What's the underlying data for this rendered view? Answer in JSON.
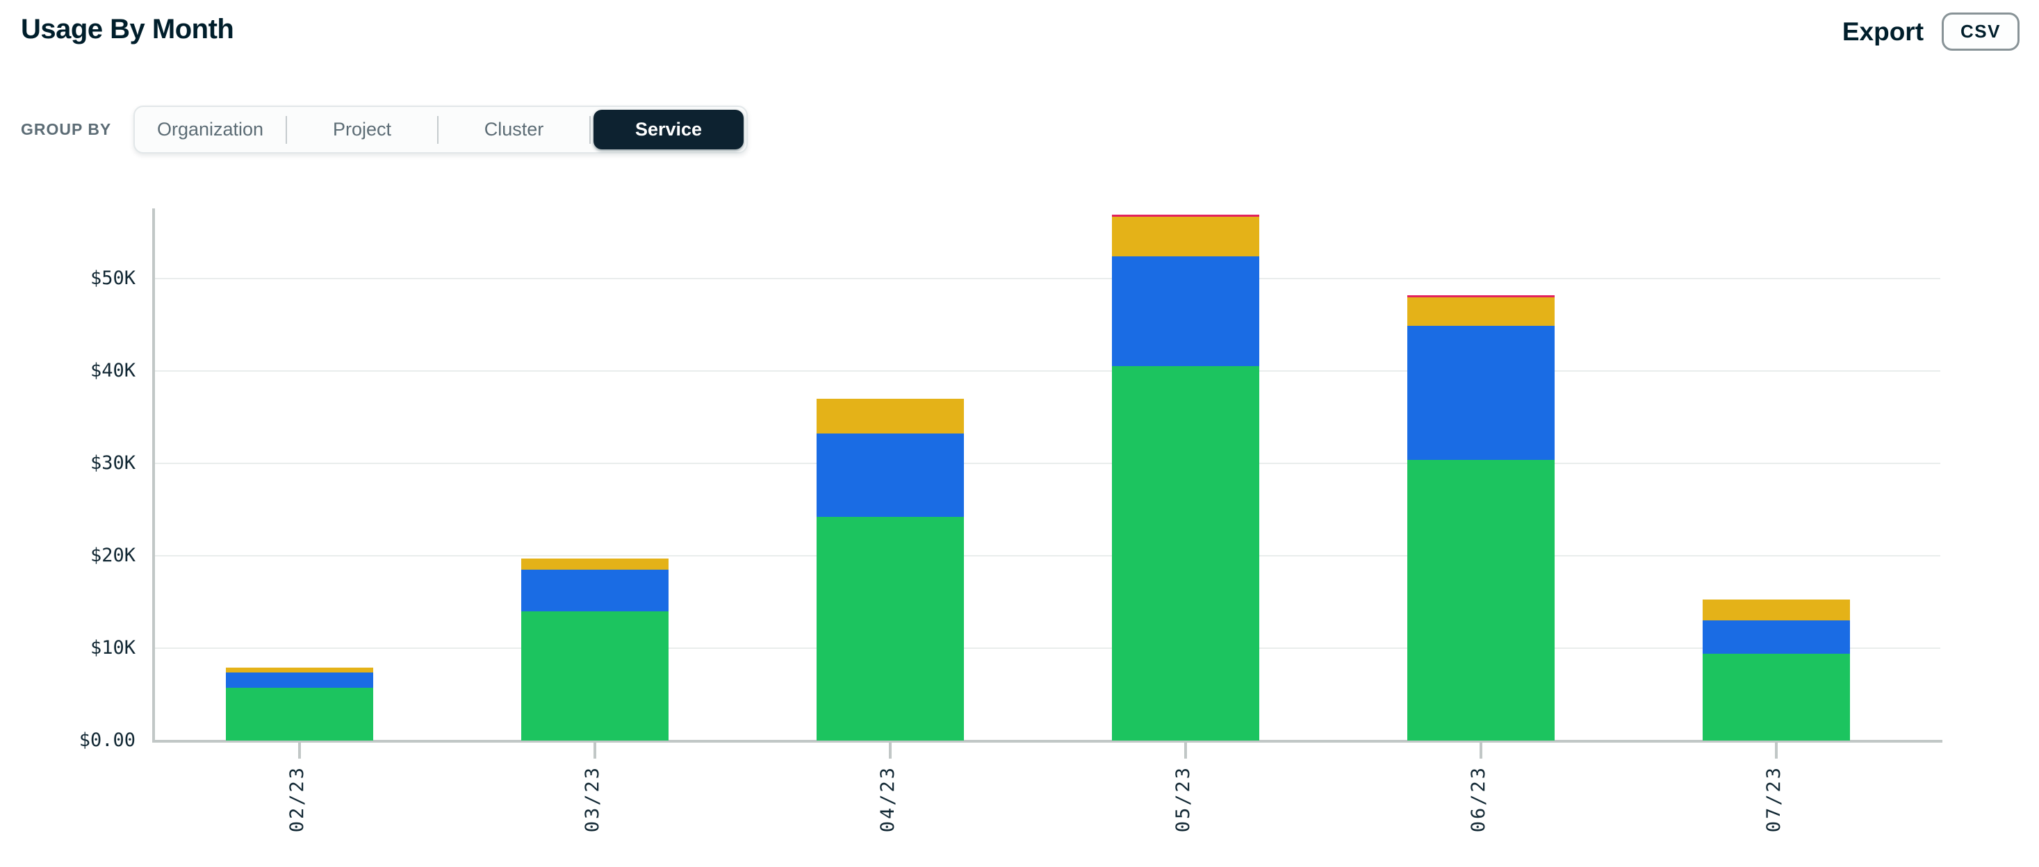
{
  "header": {
    "title": "Usage By Month",
    "export_label": "Export",
    "csv_button_label": "CSV"
  },
  "group_by": {
    "label": "GROUP BY",
    "options": [
      {
        "label": "Organization",
        "selected": false
      },
      {
        "label": "Project",
        "selected": false
      },
      {
        "label": "Cluster",
        "selected": false
      },
      {
        "label": "Service",
        "selected": true
      }
    ]
  },
  "colors": {
    "green": "#1CC45F",
    "blue": "#1A6CE4",
    "gold": "#E4B218",
    "red": "#E2215C",
    "axis": "#C1C7C6",
    "gridline": "#E9EDEC",
    "dark_text": "#001E2B",
    "muted_text": "#5C6C75",
    "selected_pill_bg": "#0D2230"
  },
  "chart_data": {
    "type": "bar",
    "stacked": true,
    "title": "Usage By Month",
    "xlabel": "",
    "ylabel": "",
    "categories": [
      "02/23",
      "03/23",
      "04/23",
      "05/23",
      "06/23",
      "07/23"
    ],
    "series": [
      {
        "name": "green",
        "values": [
          5700,
          14000,
          24200,
          40500,
          30400,
          9400
        ]
      },
      {
        "name": "blue",
        "values": [
          1650,
          4500,
          9000,
          11900,
          14500,
          3600
        ]
      },
      {
        "name": "gold",
        "values": [
          550,
          1200,
          3800,
          4300,
          3100,
          2300
        ]
      },
      {
        "name": "red",
        "values": [
          0,
          0,
          0,
          250,
          200,
          0
        ]
      }
    ],
    "y_ticks": [
      "$50K",
      "$40K",
      "$30K",
      "$20K",
      "$10K",
      "$0.00"
    ],
    "y_tick_values": [
      50000,
      40000,
      30000,
      20000,
      10000,
      0
    ],
    "ylim": [
      0,
      57500
    ],
    "grid": "horizontal",
    "legend": "none"
  }
}
